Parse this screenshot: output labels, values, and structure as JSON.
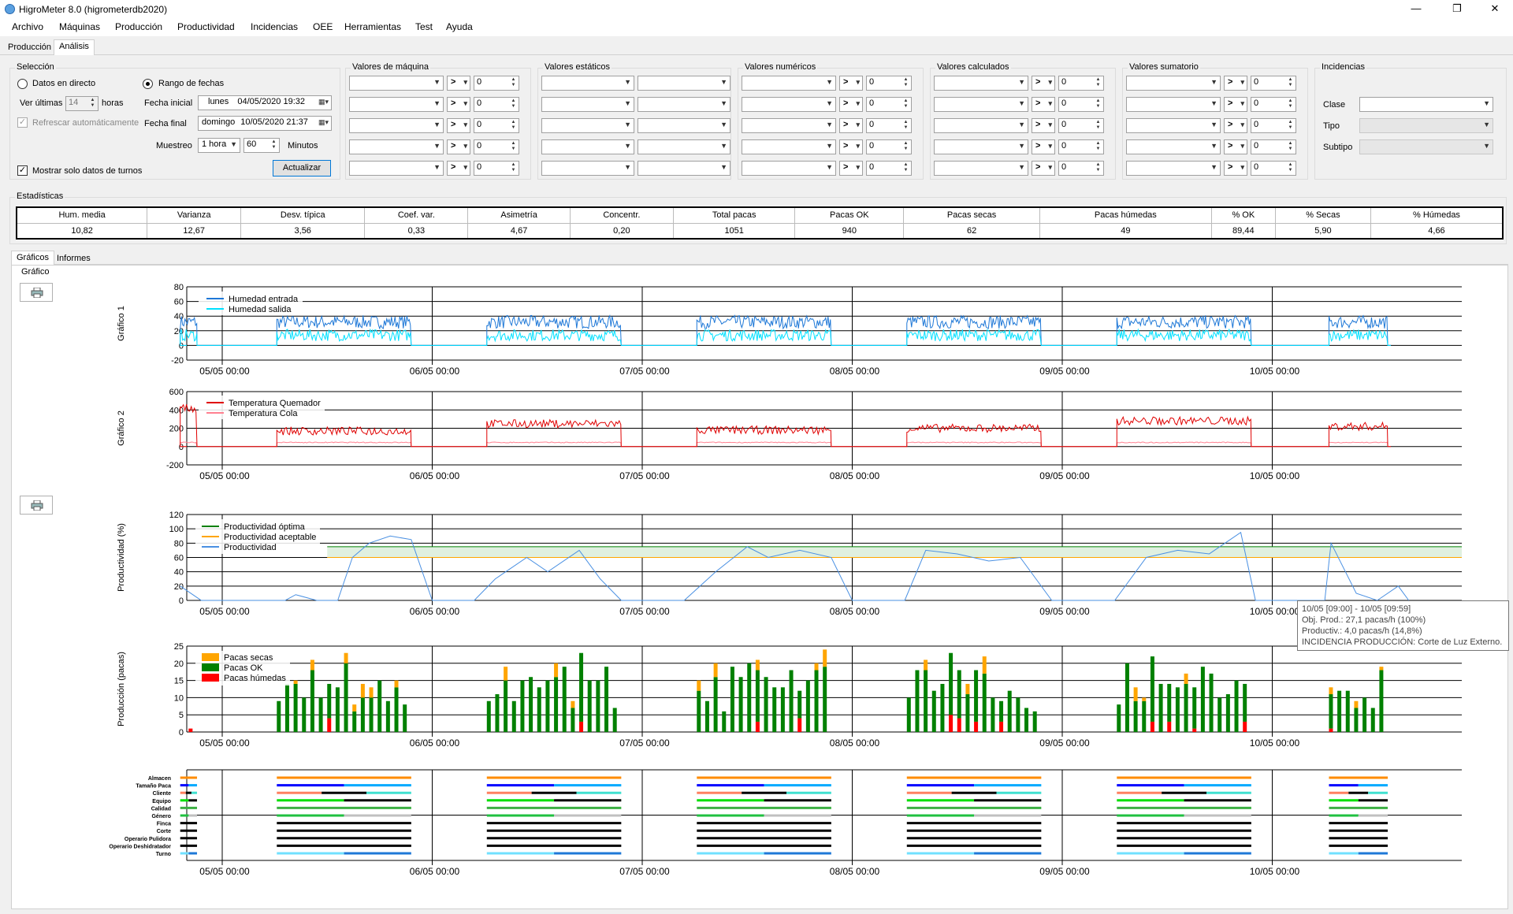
{
  "window": {
    "title": "HigroMeter 8.0 (higrometerdb2020)",
    "minimize": "—",
    "maximize": "❐",
    "close": "✕"
  },
  "menu": [
    "Archivo",
    "Máquinas",
    "Producción",
    "Productividad",
    "Incidencias",
    "OEE",
    "Herramientas",
    "Test",
    "Ayuda"
  ],
  "tabs_top": [
    "Producción",
    "Análisis"
  ],
  "seleccion": {
    "title": "Selección",
    "datos_directo": "Datos en directo",
    "rango_fechas": "Rango de fechas",
    "ver_ultimas": "Ver últimas",
    "ver_ultimas_value": "14",
    "horas": "horas",
    "refrescar": "Refrescar automáticamente",
    "fecha_inicial_label": "Fecha inicial",
    "fecha_inicial_day": "lunes",
    "fecha_inicial_value": "04/05/2020 19:32",
    "fecha_final_label": "Fecha final",
    "fecha_final_day": "domingo",
    "fecha_final_value": "10/05/2020 21:37",
    "muestreo_label": "Muestreo",
    "muestreo_value": "1 hora",
    "muestreo_minutes": "60",
    "minutos": "Minutos",
    "mostrar_turnos": "Mostrar solo datos de turnos",
    "actualizar": "Actualizar"
  },
  "filter_groups": [
    "Valores de máquina",
    "Valores estáticos",
    "Valores numéricos",
    "Valores calculados",
    "Valores sumatorio"
  ],
  "filter_op": ">",
  "filter_zero": "0",
  "incidencias": {
    "title": "Incidencias",
    "clase": "Clase",
    "tipo": "Tipo",
    "subtipo": "Subtipo"
  },
  "estadisticas": {
    "title": "Estadísticas",
    "headers": [
      "Hum. media",
      "Varianza",
      "Desv. típica",
      "Coef. var.",
      "Asimetría",
      "Concentr.",
      "Total pacas",
      "Pacas OK",
      "Pacas secas",
      "Pacas húmedas",
      "% OK",
      "% Secas",
      "% Húmedas"
    ],
    "values": [
      "10,82",
      "12,67",
      "3,56",
      "0,33",
      "4,67",
      "0,20",
      "1051",
      "940",
      "62",
      "49",
      "89,44",
      "5,90",
      "4,66"
    ]
  },
  "tabs_bottom": [
    "Gráficos",
    "Informes"
  ],
  "grafico_label": "Gráfico",
  "colors": {
    "humedad_entrada": "#1e78d7",
    "humedad_salida": "#00e0ff",
    "temp_quemador": "#e00000",
    "temp_cola": "#ff8090",
    "prod_optima": "#008000",
    "prod_aceptable": "#ffa500",
    "productividad": "#4a90e2",
    "pacas_secas": "#ffa500",
    "pacas_ok": "#008000",
    "pacas_humedas": "#ff0000"
  },
  "chart_data": [
    {
      "type": "line",
      "ylabel": "Gráfico 1",
      "ylim": [
        -20,
        80
      ],
      "yticks": [
        "80",
        "60",
        "40",
        "20",
        "0",
        "-20"
      ],
      "xticks": [
        "05/05 00:00",
        "06/05 00:00",
        "07/05 00:00",
        "08/05 00:00",
        "09/05 00:00",
        "10/05 00:00"
      ],
      "series": [
        {
          "name": "Humedad entrada"
        },
        {
          "name": "Humedad salida"
        }
      ]
    },
    {
      "type": "line",
      "ylabel": "Gráfico 2",
      "ylim": [
        -200,
        600
      ],
      "yticks": [
        "600",
        "400",
        "200",
        "0",
        "-200"
      ],
      "xticks": [
        "05/05 00:00",
        "06/05 00:00",
        "07/05 00:00",
        "08/05 00:00",
        "09/05 00:00",
        "10/05 00:00"
      ],
      "series": [
        {
          "name": "Temperatura Quemador"
        },
        {
          "name": "Temperatura Cola"
        }
      ]
    },
    {
      "type": "line",
      "ylabel": "Productividad (%)",
      "ylim": [
        0,
        120
      ],
      "yticks": [
        "120",
        "100",
        "80",
        "60",
        "40",
        "20",
        "0"
      ],
      "xticks": [
        "05/05 00:00",
        "06/05 00:00",
        "07/05 00:00",
        "08/05 00:00",
        "09/05 00:00",
        "10/05 00:00"
      ],
      "series": [
        {
          "name": "Productividad óptima",
          "values": [
            75
          ]
        },
        {
          "name": "Productividad aceptable",
          "values": [
            60
          ]
        },
        {
          "name": "Productividad"
        }
      ]
    },
    {
      "type": "bar",
      "ylabel": "Producción (pacas)",
      "ylim": [
        0,
        25
      ],
      "yticks": [
        "25",
        "20",
        "15",
        "10",
        "5",
        "0"
      ],
      "xticks": [
        "05/05 00:00",
        "06/05 00:00",
        "07/05 00:00",
        "08/05 00:00",
        "09/05 00:00",
        "10/05 00:00"
      ],
      "series": [
        {
          "name": "Pacas secas"
        },
        {
          "name": "Pacas OK"
        },
        {
          "name": "Pacas húmedas"
        }
      ]
    },
    {
      "type": "timeline",
      "categories": [
        "Almacen",
        "Tamaño Paca",
        "Cliente",
        "Equipo",
        "Calidad",
        "Género",
        "Finca",
        "Corte",
        "Operario Pulidora",
        "Operario Deshidratador",
        "Turno"
      ],
      "xticks": [
        "05/05 00:00",
        "06/05 00:00",
        "07/05 00:00",
        "08/05 00:00",
        "09/05 00:00",
        "10/05 00:00"
      ]
    }
  ],
  "tooltip": {
    "line1": "10/05 [09:00] - 10/05 [09:59]",
    "line2": "Obj. Prod.: 27,1 pacas/h (100%)",
    "line3": "Productiv.: 4,0 pacas/h (14,8%)",
    "line4": "INCIDENCIA PRODUCCIÓN: Corte de Luz Externo."
  }
}
